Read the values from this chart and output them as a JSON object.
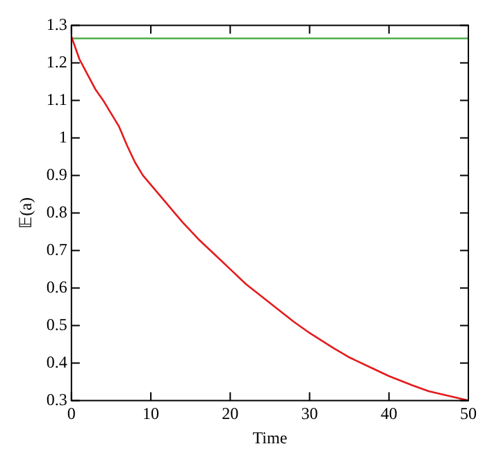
{
  "chart_data": {
    "type": "line",
    "xlabel": "Time",
    "ylabel": "𝔼(a)",
    "xlim": [
      0,
      50
    ],
    "ylim": [
      0.3,
      1.3
    ],
    "xticks": [
      0,
      10,
      20,
      30,
      40,
      50
    ],
    "yticks": [
      0.3,
      0.4,
      0.5,
      0.6,
      0.7,
      0.8,
      0.9,
      1,
      1.1,
      1.2,
      1.3
    ],
    "grid": false,
    "legend": false,
    "marker": "none",
    "line_style": "solid",
    "series": [
      {
        "color": "#e41a1c",
        "x": [
          0,
          1,
          2,
          3,
          4,
          5,
          6,
          7,
          8,
          9,
          10,
          12,
          14,
          16,
          18,
          20,
          22,
          25,
          28,
          30,
          33,
          35,
          38,
          40,
          43,
          45,
          48,
          50
        ],
        "values": [
          1.27,
          1.21,
          1.17,
          1.13,
          1.1,
          1.065,
          1.03,
          0.98,
          0.935,
          0.9,
          0.875,
          0.825,
          0.775,
          0.73,
          0.69,
          0.65,
          0.61,
          0.56,
          0.51,
          0.48,
          0.44,
          0.415,
          0.385,
          0.365,
          0.34,
          0.325,
          0.31,
          0.3
        ]
      },
      {
        "color": "#4daf4a",
        "x": [
          0,
          50
        ],
        "values": [
          1.265,
          1.265
        ]
      }
    ]
  }
}
